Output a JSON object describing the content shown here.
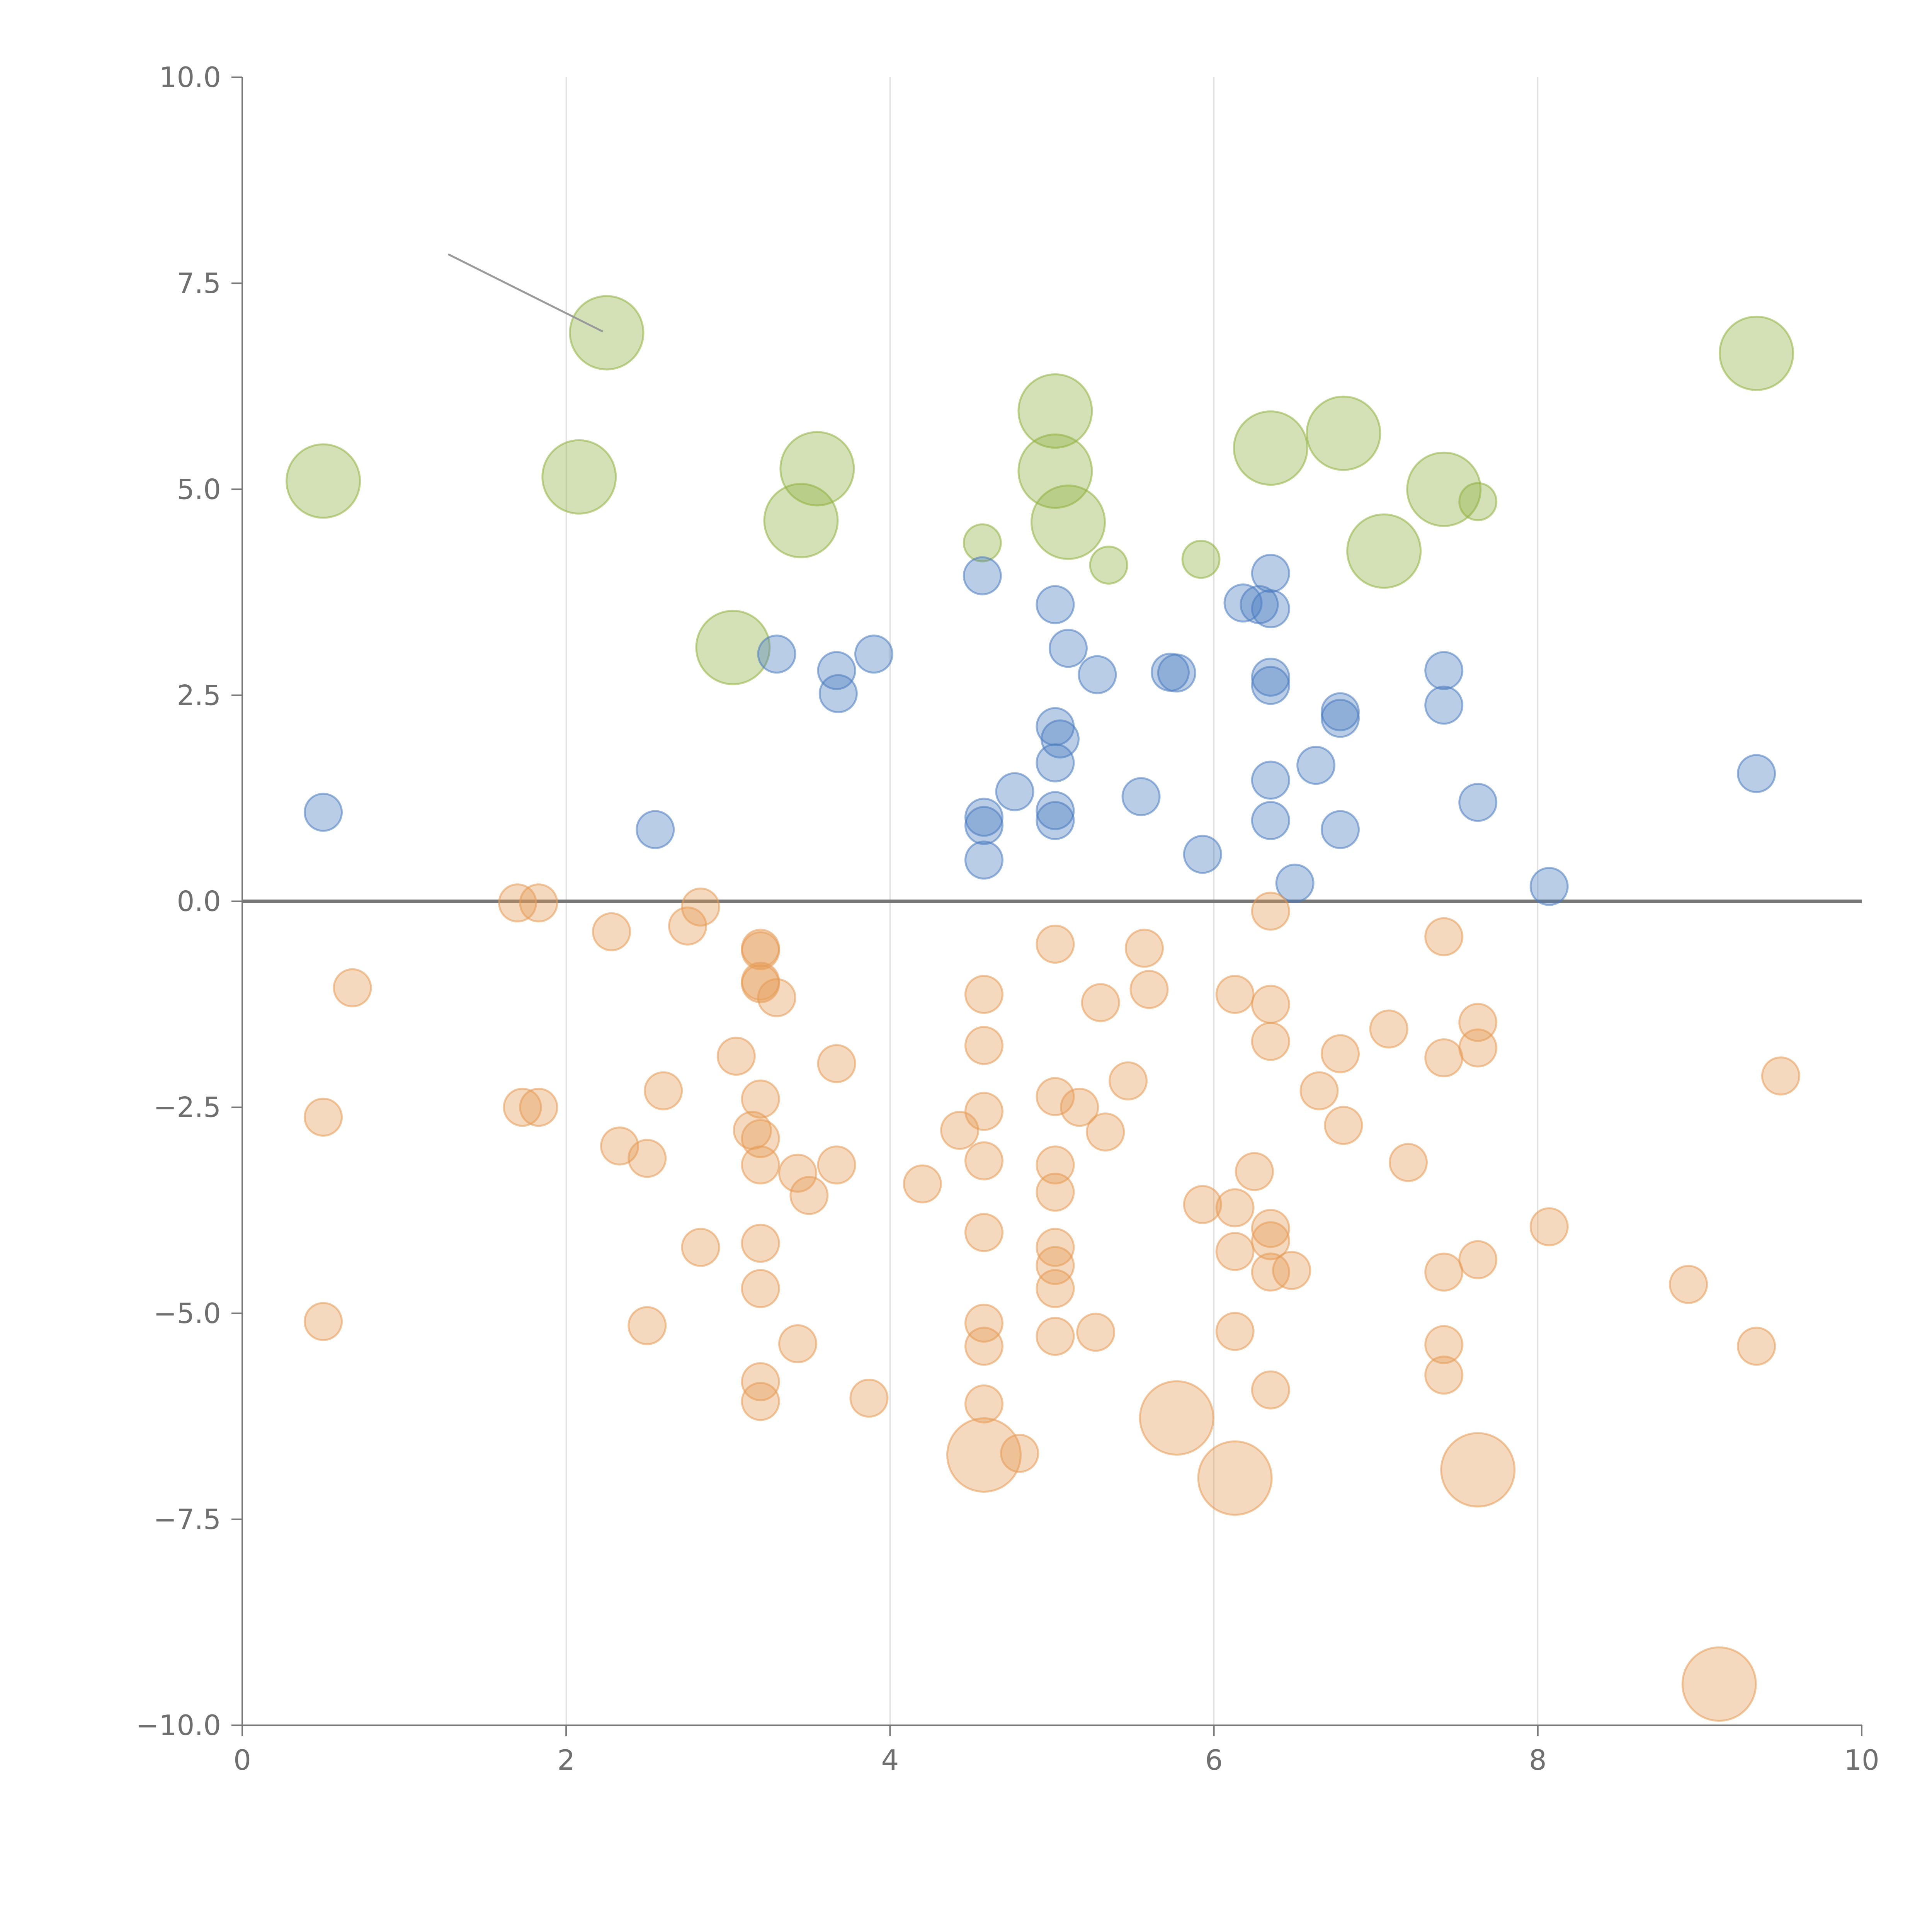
{
  "chart_data": {
    "type": "scatter",
    "title": "",
    "xlabel": "",
    "ylabel": "",
    "xlim": [
      0,
      10
    ],
    "ylim": [
      -10,
      10
    ],
    "x_ticks": [
      "0",
      "2",
      "4",
      "6",
      "8",
      "10"
    ],
    "y_ticks": [
      "−10.0",
      "−7.5",
      "−5.0",
      "−2.5",
      "0.0",
      "2.5",
      "5.0",
      "7.5",
      "10.0"
    ],
    "grid": "vertical lines only",
    "zero_line": true,
    "legend": "none",
    "series": [
      {
        "color": "#8fb03f",
        "points": [
          {
            "x": 2.25,
            "y": 6.9,
            "size": "large"
          },
          {
            "x": 0.5,
            "y": 5.1,
            "size": "large"
          },
          {
            "x": 2.08,
            "y": 5.15,
            "size": "large"
          },
          {
            "x": 3.55,
            "y": 5.25,
            "size": "large"
          },
          {
            "x": 3.45,
            "y": 4.62,
            "size": "large"
          },
          {
            "x": 3.03,
            "y": 3.08,
            "size": "large"
          },
          {
            "x": 5.02,
            "y": 5.95,
            "size": "large"
          },
          {
            "x": 5.02,
            "y": 5.22,
            "size": "large"
          },
          {
            "x": 5.1,
            "y": 4.6,
            "size": "large"
          },
          {
            "x": 6.35,
            "y": 5.5,
            "size": "large"
          },
          {
            "x": 6.8,
            "y": 5.68,
            "size": "large"
          },
          {
            "x": 7.42,
            "y": 5.0,
            "size": "large"
          },
          {
            "x": 7.05,
            "y": 4.25,
            "size": "large"
          },
          {
            "x": 9.35,
            "y": 6.65,
            "size": "large"
          },
          {
            "x": 4.57,
            "y": 4.35,
            "size": "small"
          },
          {
            "x": 5.35,
            "y": 4.08,
            "size": "small"
          },
          {
            "x": 5.92,
            "y": 4.15,
            "size": "small"
          },
          {
            "x": 7.63,
            "y": 4.85,
            "size": "small"
          }
        ]
      },
      {
        "color": "#4a7cc0",
        "points": [
          {
            "x": 0.5,
            "y": 1.08
          },
          {
            "x": 2.55,
            "y": 0.87
          },
          {
            "x": 3.3,
            "y": 3.0
          },
          {
            "x": 3.67,
            "y": 2.8
          },
          {
            "x": 3.68,
            "y": 2.52
          },
          {
            "x": 3.9,
            "y": 3.0
          },
          {
            "x": 4.57,
            "y": 3.95
          },
          {
            "x": 4.58,
            "y": 1.02
          },
          {
            "x": 4.58,
            "y": 0.92
          },
          {
            "x": 4.58,
            "y": 0.5
          },
          {
            "x": 4.77,
            "y": 1.33
          },
          {
            "x": 5.02,
            "y": 3.6
          },
          {
            "x": 5.1,
            "y": 3.07
          },
          {
            "x": 5.02,
            "y": 2.12
          },
          {
            "x": 5.05,
            "y": 1.97
          },
          {
            "x": 5.02,
            "y": 1.68
          },
          {
            "x": 5.02,
            "y": 1.1
          },
          {
            "x": 5.02,
            "y": 0.98
          },
          {
            "x": 5.28,
            "y": 2.75
          },
          {
            "x": 5.55,
            "y": 1.27
          },
          {
            "x": 5.73,
            "y": 2.78
          },
          {
            "x": 5.77,
            "y": 2.77
          },
          {
            "x": 5.93,
            "y": 0.57
          },
          {
            "x": 6.18,
            "y": 3.62
          },
          {
            "x": 6.28,
            "y": 3.6
          },
          {
            "x": 6.35,
            "y": 3.55
          },
          {
            "x": 6.35,
            "y": 3.98
          },
          {
            "x": 6.35,
            "y": 2.72
          },
          {
            "x": 6.35,
            "y": 2.62
          },
          {
            "x": 6.35,
            "y": 1.47
          },
          {
            "x": 6.35,
            "y": 0.98
          },
          {
            "x": 6.5,
            "y": 0.22
          },
          {
            "x": 6.63,
            "y": 1.65
          },
          {
            "x": 6.78,
            "y": 2.3
          },
          {
            "x": 6.78,
            "y": 2.22
          },
          {
            "x": 6.78,
            "y": 0.87
          },
          {
            "x": 7.42,
            "y": 2.8
          },
          {
            "x": 7.42,
            "y": 2.38
          },
          {
            "x": 7.63,
            "y": 1.2
          },
          {
            "x": 8.07,
            "y": 0.18
          },
          {
            "x": 9.35,
            "y": 1.55
          }
        ]
      },
      {
        "color": "#e59a55",
        "points": [
          {
            "x": 1.7,
            "y": -0.02,
            "size": "small"
          },
          {
            "x": 1.83,
            "y": -0.02,
            "size": "small"
          },
          {
            "x": 2.28,
            "y": -0.37,
            "size": "small"
          },
          {
            "x": 2.75,
            "y": -0.3,
            "size": "small"
          },
          {
            "x": 2.83,
            "y": -0.07,
            "size": "small"
          },
          {
            "x": 0.68,
            "y": -1.05,
            "size": "small"
          },
          {
            "x": 0.5,
            "y": -2.62,
            "size": "small"
          },
          {
            "x": 0.5,
            "y": -5.1,
            "size": "small"
          },
          {
            "x": 1.73,
            "y": -2.5,
            "size": "small"
          },
          {
            "x": 1.83,
            "y": -2.5,
            "size": "small"
          },
          {
            "x": 2.33,
            "y": -2.97,
            "size": "small"
          },
          {
            "x": 2.5,
            "y": -3.12,
            "size": "small"
          },
          {
            "x": 2.6,
            "y": -2.3,
            "size": "small"
          },
          {
            "x": 2.5,
            "y": -5.15,
            "size": "small"
          },
          {
            "x": 2.83,
            "y": -4.2,
            "size": "small"
          },
          {
            "x": 3.05,
            "y": -1.88,
            "size": "small"
          },
          {
            "x": 3.2,
            "y": -0.57,
            "size": "small"
          },
          {
            "x": 3.2,
            "y": -0.6,
            "size": "small"
          },
          {
            "x": 3.2,
            "y": -0.97,
            "size": "small"
          },
          {
            "x": 3.2,
            "y": -1.0,
            "size": "small"
          },
          {
            "x": 3.3,
            "y": -1.17,
            "size": "small"
          },
          {
            "x": 3.2,
            "y": -2.4,
            "size": "small"
          },
          {
            "x": 3.15,
            "y": -2.78,
            "size": "small"
          },
          {
            "x": 3.2,
            "y": -2.88,
            "size": "small"
          },
          {
            "x": 3.2,
            "y": -3.2,
            "size": "small"
          },
          {
            "x": 3.43,
            "y": -3.3,
            "size": "small"
          },
          {
            "x": 3.5,
            "y": -3.57,
            "size": "small"
          },
          {
            "x": 3.2,
            "y": -4.15,
            "size": "small"
          },
          {
            "x": 3.2,
            "y": -4.7,
            "size": "small"
          },
          {
            "x": 3.43,
            "y": -5.37,
            "size": "small"
          },
          {
            "x": 3.2,
            "y": -5.83,
            "size": "small"
          },
          {
            "x": 3.2,
            "y": -6.07,
            "size": "small"
          },
          {
            "x": 3.67,
            "y": -1.97,
            "size": "small"
          },
          {
            "x": 3.67,
            "y": -3.2,
            "size": "small"
          },
          {
            "x": 3.87,
            "y": -6.03,
            "size": "small"
          },
          {
            "x": 4.2,
            "y": -3.43,
            "size": "small"
          },
          {
            "x": 4.43,
            "y": -2.78,
            "size": "small"
          },
          {
            "x": 4.58,
            "y": -1.13,
            "size": "small"
          },
          {
            "x": 4.58,
            "y": -1.75,
            "size": "small"
          },
          {
            "x": 4.58,
            "y": -2.55,
            "size": "small"
          },
          {
            "x": 4.58,
            "y": -3.15,
            "size": "small"
          },
          {
            "x": 4.58,
            "y": -4.02,
            "size": "small"
          },
          {
            "x": 4.58,
            "y": -5.12,
            "size": "small"
          },
          {
            "x": 4.58,
            "y": -5.4,
            "size": "small"
          },
          {
            "x": 4.58,
            "y": -6.1,
            "size": "small"
          },
          {
            "x": 4.58,
            "y": -6.72,
            "size": "large"
          },
          {
            "x": 4.8,
            "y": -6.7,
            "size": "small"
          },
          {
            "x": 5.02,
            "y": -0.52,
            "size": "small"
          },
          {
            "x": 5.02,
            "y": -2.37,
            "size": "small"
          },
          {
            "x": 5.17,
            "y": -2.5,
            "size": "small"
          },
          {
            "x": 5.02,
            "y": -3.2,
            "size": "small"
          },
          {
            "x": 5.02,
            "y": -3.53,
            "size": "small"
          },
          {
            "x": 5.02,
            "y": -4.2,
            "size": "small"
          },
          {
            "x": 5.02,
            "y": -4.42,
            "size": "small"
          },
          {
            "x": 5.02,
            "y": -4.7,
            "size": "small"
          },
          {
            "x": 5.02,
            "y": -5.28,
            "size": "small"
          },
          {
            "x": 5.27,
            "y": -5.23,
            "size": "small"
          },
          {
            "x": 5.3,
            "y": -1.23,
            "size": "small"
          },
          {
            "x": 5.33,
            "y": -2.8,
            "size": "small"
          },
          {
            "x": 5.47,
            "y": -2.18,
            "size": "small"
          },
          {
            "x": 5.57,
            "y": -0.57,
            "size": "small"
          },
          {
            "x": 5.6,
            "y": -1.07,
            "size": "small"
          },
          {
            "x": 5.77,
            "y": -6.27,
            "size": "large"
          },
          {
            "x": 5.93,
            "y": -3.68,
            "size": "small"
          },
          {
            "x": 6.13,
            "y": -1.13,
            "size": "small"
          },
          {
            "x": 6.13,
            "y": -3.72,
            "size": "small"
          },
          {
            "x": 6.13,
            "y": -4.25,
            "size": "small"
          },
          {
            "x": 6.13,
            "y": -5.22,
            "size": "small"
          },
          {
            "x": 6.13,
            "y": -7.0,
            "size": "large"
          },
          {
            "x": 6.25,
            "y": -3.28,
            "size": "small"
          },
          {
            "x": 6.35,
            "y": -0.12,
            "size": "small"
          },
          {
            "x": 6.35,
            "y": -1.25,
            "size": "small"
          },
          {
            "x": 6.35,
            "y": -1.7,
            "size": "small"
          },
          {
            "x": 6.35,
            "y": -3.97,
            "size": "small"
          },
          {
            "x": 6.35,
            "y": -4.12,
            "size": "small"
          },
          {
            "x": 6.35,
            "y": -4.5,
            "size": "small"
          },
          {
            "x": 6.48,
            "y": -4.48,
            "size": "small"
          },
          {
            "x": 6.35,
            "y": -5.93,
            "size": "small"
          },
          {
            "x": 6.65,
            "y": -2.3,
            "size": "small"
          },
          {
            "x": 6.78,
            "y": -1.85,
            "size": "small"
          },
          {
            "x": 6.8,
            "y": -2.72,
            "size": "small"
          },
          {
            "x": 7.08,
            "y": -1.55,
            "size": "small"
          },
          {
            "x": 7.2,
            "y": -3.17,
            "size": "small"
          },
          {
            "x": 7.42,
            "y": -0.43,
            "size": "small"
          },
          {
            "x": 7.42,
            "y": -1.9,
            "size": "small"
          },
          {
            "x": 7.42,
            "y": -4.5,
            "size": "small"
          },
          {
            "x": 7.42,
            "y": -5.38,
            "size": "small"
          },
          {
            "x": 7.42,
            "y": -5.75,
            "size": "small"
          },
          {
            "x": 7.63,
            "y": -1.47,
            "size": "small"
          },
          {
            "x": 7.63,
            "y": -1.78,
            "size": "small"
          },
          {
            "x": 7.63,
            "y": -4.35,
            "size": "small"
          },
          {
            "x": 7.63,
            "y": -6.9,
            "size": "large"
          },
          {
            "x": 8.07,
            "y": -3.95,
            "size": "small"
          },
          {
            "x": 8.93,
            "y": -4.65,
            "size": "small"
          },
          {
            "x": 9.35,
            "y": -5.4,
            "size": "small"
          },
          {
            "x": 9.5,
            "y": -2.12,
            "size": "small"
          },
          {
            "x": 9.12,
            "y": -9.5,
            "size": "large"
          }
        ]
      }
    ]
  }
}
